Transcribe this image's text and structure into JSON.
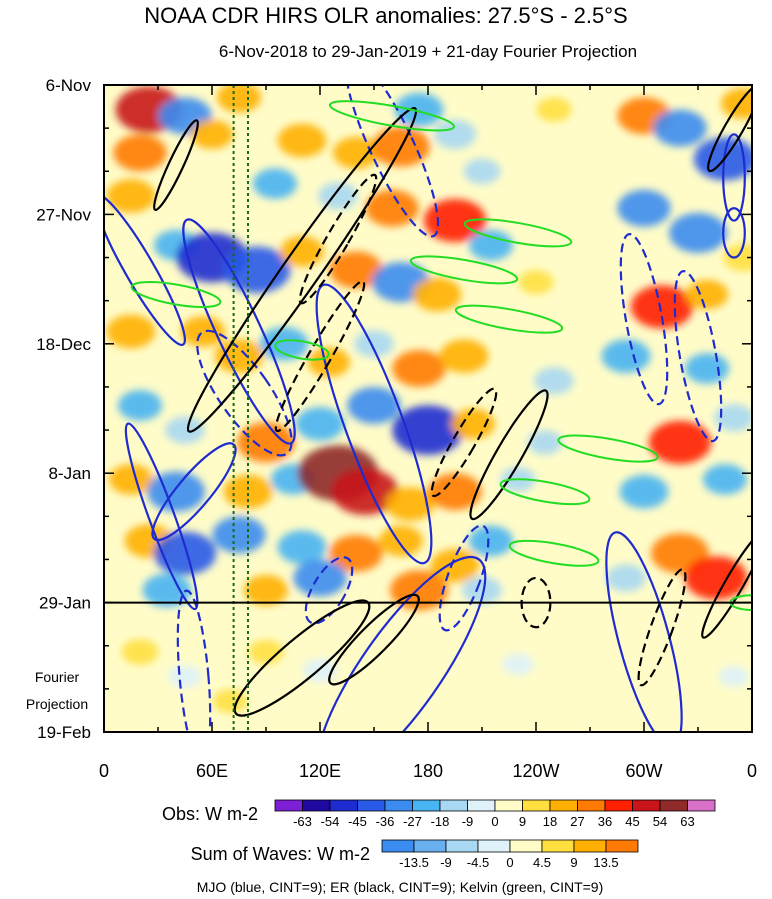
{
  "chart_data": {
    "type": "heatmap",
    "title": "NOAA CDR HIRS OLR anomalies: 27.5°S - 2.5°S",
    "subtitle": "6-Nov-2018 to 29-Jan-2019 + 21-day Fourier Projection",
    "y_ticks": [
      "6-Nov",
      "27-Nov",
      "18-Dec",
      "8-Jan",
      "29-Jan",
      "19-Feb"
    ],
    "y_tick_days": [
      0,
      21,
      42,
      63,
      84,
      105
    ],
    "x_ticks": [
      "0",
      "60E",
      "120E",
      "180",
      "120W",
      "60W",
      "0"
    ],
    "x_tick_lon": [
      0,
      60,
      120,
      180,
      240,
      300,
      360
    ],
    "projection_label": [
      "Fourier",
      "Projection"
    ],
    "projection_start_day": 84,
    "reference_lines_lon": [
      72,
      80
    ],
    "obs_legend": {
      "label": "Obs: W m-2",
      "ticks": [
        "-63",
        "-54",
        "-45",
        "-36",
        "-27",
        "-18",
        "-9",
        "0",
        "9",
        "18",
        "27",
        "36",
        "45",
        "54",
        "63"
      ],
      "colors": [
        "#7d1fd6",
        "#1e0aa0",
        "#1e2bd0",
        "#2a5ae8",
        "#3a8cf0",
        "#48b4f2",
        "#a8d8f2",
        "#dff2fa",
        "#fffcc8",
        "#ffe040",
        "#ffb000",
        "#ff7a00",
        "#ff2000",
        "#c8141a",
        "#8e2a2a",
        "#d870c8"
      ]
    },
    "waves_legend": {
      "label": "Sum of Waves: W m-2",
      "ticks": [
        "-13.5",
        "-9",
        "-4.5",
        "0",
        "4.5",
        "9",
        "13.5"
      ],
      "colors": [
        "#3a8cf0",
        "#68b0f0",
        "#a8d8f2",
        "#dff2fa",
        "#fffcc8",
        "#ffe040",
        "#ffb000",
        "#ff7a00"
      ]
    },
    "footer": "MJO (blue, CINT=9); ER (black, CINT=9); Kelvin (green, CINT=9)",
    "series": [
      {
        "name": "MJO",
        "color": "#1e2bd0"
      },
      {
        "name": "ER",
        "color": "#000000"
      },
      {
        "name": "Kelvin",
        "color": "#22dd22"
      }
    ],
    "anomaly_blobs": [
      {
        "lon": 25,
        "day": 4,
        "v": 45
      },
      {
        "lon": 20,
        "day": 11,
        "v": 30
      },
      {
        "lon": 45,
        "day": 5,
        "v": -30
      },
      {
        "lon": 75,
        "day": 2,
        "v": 20
      },
      {
        "lon": 60,
        "day": 8,
        "v": 18
      },
      {
        "lon": 110,
        "day": 9,
        "v": 25
      },
      {
        "lon": 140,
        "day": 11,
        "v": 22
      },
      {
        "lon": 165,
        "day": 10,
        "v": 35
      },
      {
        "lon": 175,
        "day": 4,
        "v": -25
      },
      {
        "lon": 195,
        "day": 8,
        "v": -18
      },
      {
        "lon": 210,
        "day": 14,
        "v": -12
      },
      {
        "lon": 250,
        "day": 4,
        "v": 10
      },
      {
        "lon": 300,
        "day": 5,
        "v": 30
      },
      {
        "lon": 320,
        "day": 7,
        "v": -30
      },
      {
        "lon": 345,
        "day": 12,
        "v": -40
      },
      {
        "lon": 355,
        "day": 3,
        "v": 20
      },
      {
        "lon": 15,
        "day": 18,
        "v": 25
      },
      {
        "lon": 95,
        "day": 16,
        "v": -20
      },
      {
        "lon": 130,
        "day": 18,
        "v": -15
      },
      {
        "lon": 160,
        "day": 20,
        "v": 30
      },
      {
        "lon": 195,
        "day": 22,
        "v": 40
      },
      {
        "lon": 215,
        "day": 26,
        "v": -20
      },
      {
        "lon": 300,
        "day": 20,
        "v": -30
      },
      {
        "lon": 330,
        "day": 24,
        "v": -35
      },
      {
        "lon": 355,
        "day": 28,
        "v": 15
      },
      {
        "lon": 40,
        "day": 26,
        "v": -20
      },
      {
        "lon": 60,
        "day": 28,
        "v": -50
      },
      {
        "lon": 85,
        "day": 30,
        "v": -45
      },
      {
        "lon": 110,
        "day": 27,
        "v": 20
      },
      {
        "lon": 140,
        "day": 30,
        "v": 30
      },
      {
        "lon": 165,
        "day": 32,
        "v": -35
      },
      {
        "lon": 185,
        "day": 34,
        "v": 25
      },
      {
        "lon": 240,
        "day": 32,
        "v": 10
      },
      {
        "lon": 310,
        "day": 36,
        "v": 40
      },
      {
        "lon": 335,
        "day": 34,
        "v": 18
      },
      {
        "lon": 15,
        "day": 40,
        "v": 25
      },
      {
        "lon": 55,
        "day": 40,
        "v": 20
      },
      {
        "lon": 75,
        "day": 44,
        "v": 25
      },
      {
        "lon": 100,
        "day": 42,
        "v": -25
      },
      {
        "lon": 125,
        "day": 45,
        "v": 18
      },
      {
        "lon": 150,
        "day": 42,
        "v": -15
      },
      {
        "lon": 175,
        "day": 46,
        "v": 30
      },
      {
        "lon": 200,
        "day": 44,
        "v": 25
      },
      {
        "lon": 250,
        "day": 48,
        "v": -15
      },
      {
        "lon": 290,
        "day": 44,
        "v": -25
      },
      {
        "lon": 335,
        "day": 46,
        "v": -20
      },
      {
        "lon": 20,
        "day": 52,
        "v": -20
      },
      {
        "lon": 45,
        "day": 56,
        "v": -15
      },
      {
        "lon": 90,
        "day": 58,
        "v": 35
      },
      {
        "lon": 120,
        "day": 55,
        "v": -25
      },
      {
        "lon": 150,
        "day": 52,
        "v": -30
      },
      {
        "lon": 180,
        "day": 56,
        "v": -50
      },
      {
        "lon": 205,
        "day": 55,
        "v": 20
      },
      {
        "lon": 245,
        "day": 58,
        "v": -10
      },
      {
        "lon": 320,
        "day": 58,
        "v": 40
      },
      {
        "lon": 350,
        "day": 54,
        "v": -15
      },
      {
        "lon": 15,
        "day": 64,
        "v": 20
      },
      {
        "lon": 40,
        "day": 66,
        "v": -35
      },
      {
        "lon": 80,
        "day": 66,
        "v": 25
      },
      {
        "lon": 105,
        "day": 64,
        "v": -20
      },
      {
        "lon": 130,
        "day": 63,
        "v": 60
      },
      {
        "lon": 145,
        "day": 66,
        "v": 45
      },
      {
        "lon": 170,
        "day": 68,
        "v": 25
      },
      {
        "lon": 195,
        "day": 66,
        "v": 30
      },
      {
        "lon": 230,
        "day": 64,
        "v": -10
      },
      {
        "lon": 300,
        "day": 66,
        "v": -25
      },
      {
        "lon": 345,
        "day": 64,
        "v": -20
      },
      {
        "lon": 25,
        "day": 74,
        "v": 25
      },
      {
        "lon": 45,
        "day": 76,
        "v": -40
      },
      {
        "lon": 75,
        "day": 73,
        "v": -30
      },
      {
        "lon": 110,
        "day": 75,
        "v": -25
      },
      {
        "lon": 140,
        "day": 76,
        "v": 30
      },
      {
        "lon": 165,
        "day": 74,
        "v": 20
      },
      {
        "lon": 195,
        "day": 78,
        "v": 25
      },
      {
        "lon": 215,
        "day": 74,
        "v": -20
      },
      {
        "lon": 320,
        "day": 76,
        "v": 35
      },
      {
        "lon": 340,
        "day": 80,
        "v": 40
      },
      {
        "lon": 35,
        "day": 82,
        "v": -25
      },
      {
        "lon": 90,
        "day": 82,
        "v": 20
      },
      {
        "lon": 120,
        "day": 80,
        "v": -30
      },
      {
        "lon": 175,
        "day": 82,
        "v": 35
      },
      {
        "lon": 210,
        "day": 82,
        "v": -15
      },
      {
        "lon": 290,
        "day": 80,
        "v": -15
      },
      {
        "lon": 20,
        "day": 92,
        "v": 12
      },
      {
        "lon": 45,
        "day": 96,
        "v": -8
      },
      {
        "lon": 90,
        "day": 92,
        "v": 10
      },
      {
        "lon": 120,
        "day": 95,
        "v": -9
      },
      {
        "lon": 165,
        "day": 90,
        "v": 8
      },
      {
        "lon": 230,
        "day": 94,
        "v": -6
      },
      {
        "lon": 320,
        "day": 92,
        "v": 6
      },
      {
        "lon": 350,
        "day": 96,
        "v": -5
      },
      {
        "lon": 70,
        "day": 100,
        "v": 9
      }
    ],
    "wave_contours": [
      {
        "series": "MJO",
        "lon": 32,
        "day": 70,
        "rlon": 7,
        "rday": 16,
        "angle": -20,
        "dashed": false
      },
      {
        "series": "MJO",
        "lon": 50,
        "day": 66,
        "rlon": 9,
        "rday": 10,
        "angle": 40,
        "dashed": false
      },
      {
        "series": "MJO",
        "lon": 20,
        "day": 30,
        "rlon": 8,
        "rday": 14,
        "angle": -30,
        "dashed": false
      },
      {
        "series": "MJO",
        "lon": 75,
        "day": 40,
        "rlon": 12,
        "rday": 20,
        "angle": -25,
        "dashed": false
      },
      {
        "series": "MJO",
        "lon": 150,
        "day": 55,
        "rlon": 16,
        "rday": 24,
        "angle": -20,
        "dashed": false
      },
      {
        "series": "MJO",
        "lon": 165,
        "day": 95,
        "rlon": 22,
        "rday": 22,
        "angle": 35,
        "dashed": false
      },
      {
        "series": "MJO",
        "lon": 300,
        "day": 90,
        "rlon": 14,
        "rday": 18,
        "angle": -15,
        "dashed": false
      },
      {
        "series": "MJO",
        "lon": 350,
        "day": 24,
        "rlon": 6,
        "rday": 4,
        "angle": 0,
        "dashed": false
      },
      {
        "series": "MJO",
        "lon": 350,
        "day": 15,
        "rlon": 6,
        "rday": 7,
        "angle": 0,
        "dashed": false
      },
      {
        "series": "MJO",
        "lon": 160,
        "day": 10,
        "rlon": 12,
        "rday": 16,
        "angle": -25,
        "dashed": true
      },
      {
        "series": "MJO",
        "lon": 78,
        "day": 50,
        "rlon": 14,
        "rday": 12,
        "angle": -35,
        "dashed": true
      },
      {
        "series": "MJO",
        "lon": 300,
        "day": 38,
        "rlon": 10,
        "rday": 14,
        "angle": -10,
        "dashed": true
      },
      {
        "series": "MJO",
        "lon": 330,
        "day": 44,
        "rlon": 10,
        "rday": 14,
        "angle": -10,
        "dashed": true
      },
      {
        "series": "MJO",
        "lon": 50,
        "day": 96,
        "rlon": 8,
        "rday": 14,
        "angle": -5,
        "dashed": true
      },
      {
        "series": "MJO",
        "lon": 200,
        "day": 80,
        "rlon": 9,
        "rday": 9,
        "angle": 20,
        "dashed": true
      },
      {
        "series": "MJO",
        "lon": 125,
        "day": 82,
        "rlon": 9,
        "rday": 6,
        "angle": 30,
        "dashed": true
      },
      {
        "series": "ER",
        "lon": 110,
        "day": 30,
        "rlon": 10,
        "rday": 32,
        "angle": 35,
        "dashed": false
      },
      {
        "series": "ER",
        "lon": 110,
        "day": 93,
        "rlon": 11,
        "rday": 14,
        "angle": 50,
        "dashed": false
      },
      {
        "series": "ER",
        "lon": 150,
        "day": 90,
        "rlon": 8,
        "rday": 10,
        "angle": 45,
        "dashed": false
      },
      {
        "series": "ER",
        "lon": 225,
        "day": 60,
        "rlon": 7,
        "rday": 12,
        "angle": 30,
        "dashed": false
      },
      {
        "series": "ER",
        "lon": 350,
        "day": 81,
        "rlon": 5,
        "rday": 10,
        "angle": 30,
        "dashed": false
      },
      {
        "series": "ER",
        "lon": 350,
        "day": 7,
        "rlon": 5,
        "rday": 8,
        "angle": 30,
        "dashed": false
      },
      {
        "series": "ER",
        "lon": 40,
        "day": 13,
        "rlon": 4,
        "rday": 8,
        "angle": 25,
        "dashed": false
      },
      {
        "series": "ER",
        "lon": 120,
        "day": 44,
        "rlon": 6,
        "rday": 14,
        "angle": 30,
        "dashed": true
      },
      {
        "series": "ER",
        "lon": 130,
        "day": 25,
        "rlon": 6,
        "rday": 12,
        "angle": 30,
        "dashed": true
      },
      {
        "series": "ER",
        "lon": 200,
        "day": 58,
        "rlon": 6,
        "rday": 10,
        "angle": 30,
        "dashed": true
      },
      {
        "series": "ER",
        "lon": 240,
        "day": 84,
        "rlon": 8,
        "rday": 4,
        "angle": 0,
        "dashed": true
      },
      {
        "series": "ER",
        "lon": 310,
        "day": 88,
        "rlon": 6,
        "rday": 10,
        "angle": 20,
        "dashed": true
      },
      {
        "series": "Kelvin",
        "lon": 160,
        "day": 5,
        "rlon": 35,
        "rday": 1.6,
        "angle": 10,
        "dashed": false
      },
      {
        "series": "Kelvin",
        "lon": 230,
        "day": 24,
        "rlon": 30,
        "rday": 1.6,
        "angle": 10,
        "dashed": false
      },
      {
        "series": "Kelvin",
        "lon": 200,
        "day": 30,
        "rlon": 30,
        "rday": 1.6,
        "angle": 10,
        "dashed": false
      },
      {
        "series": "Kelvin",
        "lon": 225,
        "day": 38,
        "rlon": 30,
        "rday": 1.6,
        "angle": 10,
        "dashed": false
      },
      {
        "series": "Kelvin",
        "lon": 280,
        "day": 59,
        "rlon": 28,
        "rday": 1.6,
        "angle": 10,
        "dashed": false
      },
      {
        "series": "Kelvin",
        "lon": 245,
        "day": 66,
        "rlon": 25,
        "rday": 1.6,
        "angle": 10,
        "dashed": false
      },
      {
        "series": "Kelvin",
        "lon": 250,
        "day": 76,
        "rlon": 25,
        "rday": 1.6,
        "angle": 10,
        "dashed": false
      },
      {
        "series": "Kelvin",
        "lon": 40,
        "day": 34,
        "rlon": 25,
        "rday": 1.6,
        "angle": 10,
        "dashed": false
      },
      {
        "series": "Kelvin",
        "lon": 110,
        "day": 43,
        "rlon": 15,
        "rday": 1.4,
        "angle": 10,
        "dashed": false
      },
      {
        "series": "Kelvin",
        "lon": 360,
        "day": 84,
        "rlon": 12,
        "rday": 1.2,
        "angle": 0,
        "dashed": false
      }
    ]
  }
}
